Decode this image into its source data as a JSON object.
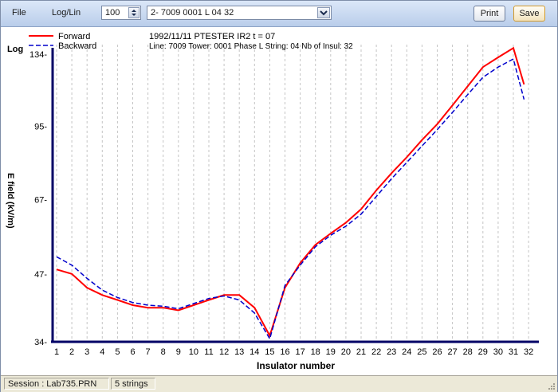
{
  "toolbar": {
    "file_label": "File",
    "loglin_label": "Log/Lin",
    "spin_value": "100",
    "selector_value": "2- 7009 0001 L 04 32",
    "print_label": "Print",
    "save_label": "Save"
  },
  "chart_header": {
    "line1": "1992/11/11 PTESTER IR2    t = 07",
    "line2": "Line: 7009 Tower: 0001 Phase L String: 04 Nb of Insul: 32"
  },
  "chart_data": {
    "type": "line",
    "scale_label": "Log",
    "xlabel": "Insulator number",
    "ylabel": "E field (kV/m)",
    "yscale": "log",
    "ylim": [
      34,
      134
    ],
    "yticks": [
      "34",
      "47",
      "67",
      "95",
      "134"
    ],
    "xticks": [
      "1",
      "2",
      "3",
      "4",
      "5",
      "6",
      "7",
      "8",
      "9",
      "10",
      "11",
      "12",
      "13",
      "14",
      "15",
      "16",
      "17",
      "18",
      "19",
      "20",
      "21",
      "22",
      "23",
      "24",
      "25",
      "26",
      "27",
      "28",
      "29",
      "30",
      "31",
      "32"
    ],
    "grid": "vertical-dashed",
    "legend_position": "top-left",
    "series": [
      {
        "name": "Forward",
        "color": "#ff0000",
        "style": "solid",
        "x": [
          1,
          2,
          3,
          4,
          5,
          6,
          7,
          8,
          9,
          10,
          11,
          12,
          13,
          14,
          15,
          16,
          17,
          18,
          19,
          20,
          21,
          22,
          23,
          24,
          25,
          26,
          27,
          28,
          29,
          30,
          31,
          31.7
        ],
        "values": [
          48,
          47,
          44,
          42.5,
          41.5,
          40.5,
          40,
          40,
          39.5,
          40.5,
          41.5,
          42.5,
          42.5,
          40,
          35,
          44,
          49.5,
          54,
          57,
          60,
          64,
          70,
          76,
          82,
          89,
          96,
          105,
          115,
          126,
          132,
          138,
          116
        ]
      },
      {
        "name": "Backward",
        "color": "#0000cc",
        "style": "dashed",
        "x": [
          1,
          2,
          3,
          4,
          5,
          6,
          7,
          8,
          9,
          10,
          11,
          12,
          13,
          14,
          15,
          16,
          17,
          18,
          19,
          20,
          21,
          22,
          23,
          24,
          25,
          26,
          27,
          28,
          29,
          30,
          31,
          31.7
        ],
        "values": [
          51,
          49,
          46,
          43.5,
          42,
          41,
          40.5,
          40.3,
          39.8,
          40.8,
          41.8,
          42.3,
          41.5,
          39,
          34.5,
          44.5,
          49,
          53.5,
          56.5,
          59,
          62.5,
          68,
          74,
          80,
          86.5,
          93.5,
          101.5,
          110.5,
          120,
          126,
          131,
          108
        ]
      }
    ]
  },
  "status": {
    "session": "Session : Lab735.PRN",
    "strings": "5 strings"
  }
}
